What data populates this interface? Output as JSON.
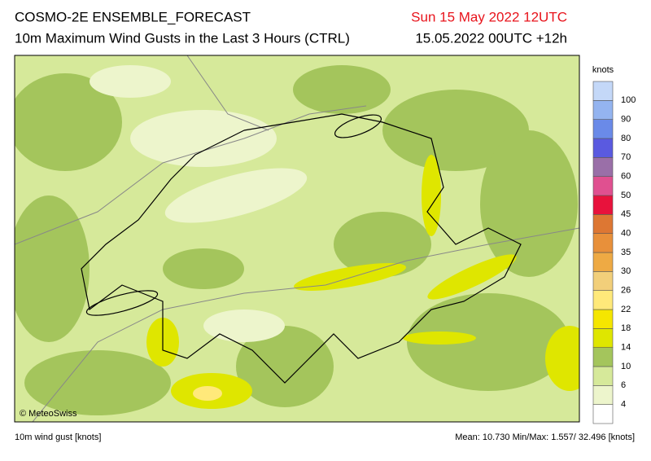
{
  "header": {
    "title": "COSMO-2E ENSEMBLE_FORECAST",
    "subtitle": "10m Maximum Wind Gusts in the Last 3 Hours (CTRL)",
    "valid_time": "Sun 15 May 2022 12UTC",
    "run_time": "15.05.2022 00UTC +12h"
  },
  "legend": {
    "unit": "knots",
    "levels": [
      4,
      6,
      10,
      14,
      18,
      22,
      26,
      30,
      35,
      40,
      45,
      50,
      60,
      70,
      80,
      90,
      100
    ],
    "colors": [
      "#ffffff",
      "#edf5cc",
      "#d6e99a",
      "#a4c55c",
      "#dfe600",
      "#f5e600",
      "#ffe97a",
      "#f2cf7a",
      "#eeaa44",
      "#e8903a",
      "#dd7733",
      "#e8123c",
      "#e05090",
      "#9a6fa8",
      "#5a5ae0",
      "#6a8ae8",
      "#94b4f0",
      "#c4d8f8"
    ]
  },
  "map": {
    "copyright": "© MeteoSwiss"
  },
  "footer": {
    "variable": "10m wind gust [knots]",
    "stats": "Mean: 10.730 Min/Max: 1.557/ 32.496 [knots]"
  }
}
